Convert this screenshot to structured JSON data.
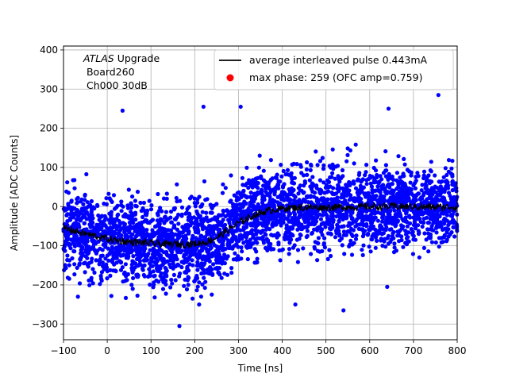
{
  "chart_data": {
    "type": "scatter",
    "title": "",
    "xlabel": "Time [ns]",
    "ylabel": "Amplitude [ADC Counts]",
    "xlim": [
      -100,
      800
    ],
    "ylim": [
      -340,
      410
    ],
    "x_ticks": [
      -100,
      0,
      100,
      200,
      300,
      400,
      500,
      600,
      700,
      800
    ],
    "y_ticks": [
      -300,
      -200,
      -100,
      0,
      100,
      200,
      300,
      400
    ],
    "x_tick_labels": [
      "−100",
      "0",
      "100",
      "200",
      "300",
      "400",
      "500",
      "600",
      "700",
      "800"
    ],
    "y_tick_labels": [
      "−300",
      "−200",
      "−100",
      "0",
      "100",
      "200",
      "300",
      "400"
    ],
    "grid": true,
    "legend_position": "top-right",
    "annotation": {
      "experiment": "ATLAS",
      "experiment_suffix": " Upgrade",
      "line2": " Board260",
      "line3": " Ch000 30dB"
    },
    "series": [
      {
        "name": "average interleaved pulse 0.443mA",
        "type": "line",
        "color": "#000000",
        "x": [
          -100,
          -80,
          -60,
          -40,
          -20,
          0,
          20,
          40,
          60,
          80,
          100,
          120,
          140,
          160,
          180,
          200,
          220,
          240,
          260,
          280,
          300,
          320,
          340,
          360,
          380,
          400,
          420,
          440,
          460,
          480,
          500,
          520,
          540,
          560,
          580,
          600,
          620,
          640,
          660,
          680,
          700,
          720,
          740,
          760,
          780,
          800
        ],
        "y": [
          -55,
          -60,
          -67,
          -72,
          -77,
          -82,
          -86,
          -89,
          -91,
          -92,
          -94,
          -95,
          -96,
          -96,
          -96,
          -95,
          -92,
          -85,
          -72,
          -57,
          -42,
          -30,
          -20,
          -13,
          -8,
          -5,
          -3,
          -2,
          -2,
          -2,
          -2,
          -2,
          -1,
          -1,
          -1,
          0,
          0,
          0,
          0,
          0,
          0,
          -1,
          -1,
          -1,
          -1,
          -1
        ]
      },
      {
        "name": "max phase: 259 (OFC amp=0.759)",
        "type": "scatter",
        "color": "#ff0000",
        "x": [],
        "y": []
      },
      {
        "name": "",
        "type": "scatter",
        "color": "#0000ff",
        "description_of_spread": "dense cloud around the average pulse, typical spread ±100, outliers to ±300",
        "outliers": [
          {
            "x": 35,
            "y": 245
          },
          {
            "x": 165,
            "y": -305
          },
          {
            "x": 220,
            "y": 255
          },
          {
            "x": 305,
            "y": 255
          },
          {
            "x": 757,
            "y": 285
          },
          {
            "x": 430,
            "y": -250
          },
          {
            "x": 540,
            "y": -265
          },
          {
            "x": 643,
            "y": 250
          },
          {
            "x": 210,
            "y": -250
          },
          {
            "x": -67,
            "y": -230
          },
          {
            "x": 195,
            "y": -235
          },
          {
            "x": 640,
            "y": -205
          }
        ]
      }
    ]
  }
}
